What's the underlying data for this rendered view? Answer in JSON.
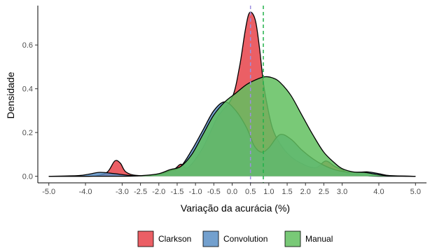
{
  "chart_data": {
    "type": "area",
    "subtype": "density",
    "xlabel": "Variação da acurácia (%)",
    "ylabel": "Densidade",
    "xlim": [
      -5.3,
      5.3
    ],
    "ylim": [
      -0.03,
      0.78
    ],
    "x_ticks": [
      -5.0,
      -4.0,
      -3.0,
      -2.5,
      -2.0,
      -1.5,
      -1.0,
      -0.5,
      0.0,
      0.5,
      1.0,
      1.5,
      2.0,
      2.5,
      3.0,
      4.0,
      5.0
    ],
    "x_tick_labels": [
      "-5.0",
      "-4.0",
      "-3.0",
      "-2.5",
      "-2.0",
      "-1.5",
      "-1.0",
      "-0.5",
      "0.0",
      "0.5",
      "1.0",
      "1.5",
      "2.0",
      "2.5",
      "3.0",
      "4.0",
      "5.0"
    ],
    "y_ticks": [
      0.0,
      0.2,
      0.4,
      0.6
    ],
    "y_tick_labels": [
      "0.0",
      "0.2",
      "0.4",
      "0.6"
    ],
    "grid": false,
    "legend_position": "bottom",
    "vlines": [
      {
        "series": "Convolution",
        "x": 0.5,
        "color": "#9d8fe0",
        "style": "dashed"
      },
      {
        "series": "Manual",
        "x": 0.85,
        "color": "#22b04a",
        "style": "dashed"
      }
    ],
    "series": [
      {
        "name": "Clarkson",
        "color": "#e8434a",
        "x": [
          -5.0,
          -4.0,
          -3.7,
          -3.4,
          -3.2,
          -3.05,
          -2.9,
          -2.6,
          -2.0,
          -1.6,
          -1.4,
          -1.2,
          -0.8,
          -0.4,
          0.0,
          0.2,
          0.35,
          0.45,
          0.55,
          0.65,
          0.75,
          0.85,
          0.95,
          1.1,
          1.3,
          1.6,
          2.0,
          2.3,
          2.55,
          2.8,
          3.0,
          3.2,
          3.6,
          4.0,
          5.0
        ],
        "y": [
          0.0,
          0.0,
          0.002,
          0.02,
          0.07,
          0.06,
          0.02,
          0.004,
          0.005,
          0.03,
          0.055,
          0.04,
          0.13,
          0.27,
          0.36,
          0.5,
          0.66,
          0.74,
          0.745,
          0.7,
          0.58,
          0.43,
          0.33,
          0.22,
          0.15,
          0.09,
          0.05,
          0.04,
          0.07,
          0.045,
          0.03,
          0.012,
          0.004,
          0.0,
          0.0
        ]
      },
      {
        "name": "Convolution",
        "color": "#5b8fc5",
        "x": [
          -5.0,
          -4.2,
          -3.9,
          -3.6,
          -3.2,
          -2.8,
          -2.4,
          -2.0,
          -1.7,
          -1.4,
          -1.1,
          -0.8,
          -0.5,
          -0.2,
          0.1,
          0.4,
          0.6,
          0.8,
          1.0,
          1.3,
          1.6,
          1.9,
          2.2,
          2.5,
          2.8,
          3.1,
          3.4,
          3.7,
          4.0,
          4.3,
          5.0
        ],
        "y": [
          0.0,
          0.003,
          0.01,
          0.018,
          0.012,
          0.004,
          0.002,
          0.01,
          0.025,
          0.045,
          0.12,
          0.21,
          0.3,
          0.34,
          0.3,
          0.22,
          0.14,
          0.11,
          0.13,
          0.19,
          0.17,
          0.12,
          0.08,
          0.05,
          0.03,
          0.02,
          0.018,
          0.02,
          0.012,
          0.003,
          0.0
        ]
      },
      {
        "name": "Manual",
        "color": "#62bf5f",
        "x": [
          -5.0,
          -3.0,
          -2.4,
          -2.0,
          -1.7,
          -1.4,
          -1.1,
          -0.8,
          -0.5,
          -0.2,
          0.1,
          0.4,
          0.7,
          0.9,
          1.1,
          1.3,
          1.6,
          1.9,
          2.2,
          2.5,
          2.8,
          3.0,
          3.3,
          3.6,
          3.9,
          4.2,
          5.0
        ],
        "y": [
          0.0,
          0.0,
          0.004,
          0.012,
          0.03,
          0.045,
          0.1,
          0.19,
          0.28,
          0.34,
          0.38,
          0.42,
          0.445,
          0.455,
          0.45,
          0.43,
          0.37,
          0.28,
          0.19,
          0.11,
          0.06,
          0.035,
          0.02,
          0.018,
          0.01,
          0.003,
          0.0
        ]
      }
    ]
  }
}
